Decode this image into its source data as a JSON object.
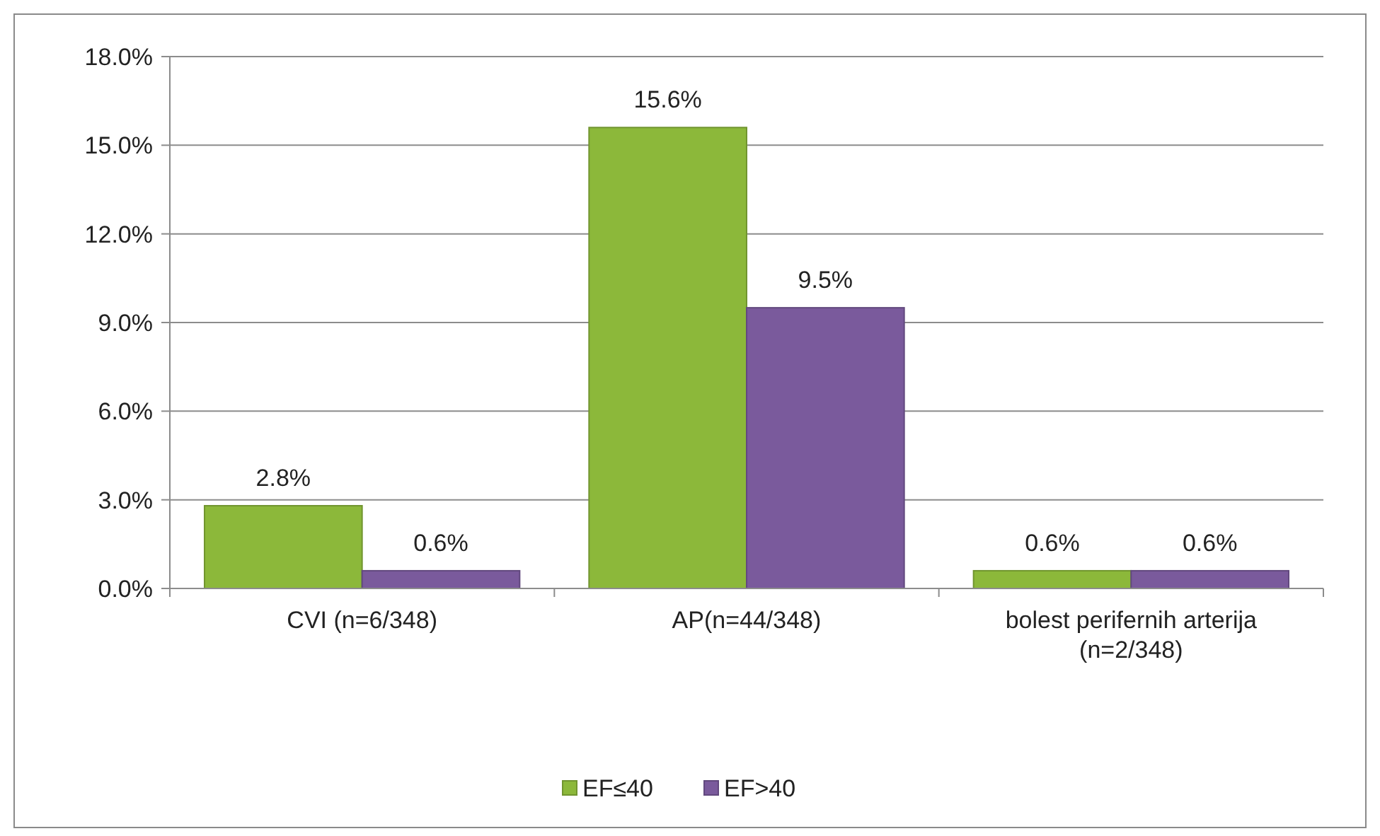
{
  "chart_data": {
    "type": "bar",
    "categories": [
      "CVI (n=6/348)",
      "AP(n=44/348)",
      "bolest perifernih arterija (n=2/348)"
    ],
    "series": [
      {
        "name": "EF≤40",
        "color": "#8cb83a",
        "values": [
          2.8,
          15.6,
          0.6
        ],
        "value_labels": [
          "2.8%",
          "15.6%",
          "0.6%"
        ]
      },
      {
        "name": "EF>40",
        "color": "#7a5a9c",
        "values": [
          0.6,
          9.5,
          0.6
        ],
        "value_labels": [
          "0.6%",
          "9.5%",
          "0.6%"
        ]
      }
    ],
    "ylim": [
      0,
      18
    ],
    "yticks": [
      {
        "value": 0,
        "label": "0.0%"
      },
      {
        "value": 3,
        "label": "3.0%"
      },
      {
        "value": 6,
        "label": "6.0%"
      },
      {
        "value": 9,
        "label": "9.0%"
      },
      {
        "value": 12,
        "label": "12.0%"
      },
      {
        "value": 15,
        "label": "15.0%"
      },
      {
        "value": 18,
        "label": "18.0%"
      }
    ],
    "grid": "y",
    "legend": "bottom"
  }
}
